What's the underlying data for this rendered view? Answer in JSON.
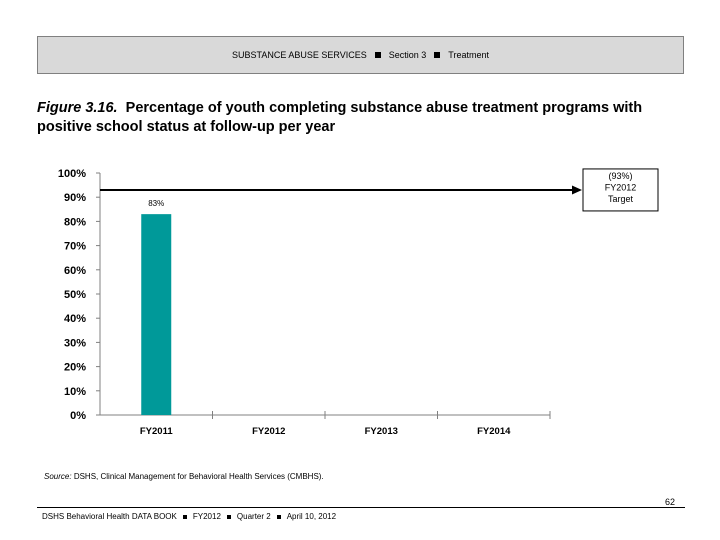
{
  "header": {
    "items": [
      "SUBSTANCE ABUSE SERVICES",
      "Section 3",
      "Treatment"
    ]
  },
  "figure": {
    "label": "Figure 3.16.",
    "title": "Percentage of youth completing substance abuse treatment programs with positive school status at follow-up per year"
  },
  "chart_data": {
    "type": "bar",
    "categories": [
      "FY2011",
      "FY2012",
      "FY2013",
      "FY2014"
    ],
    "values": [
      83,
      null,
      null,
      null
    ],
    "data_labels": [
      "83%",
      "",
      "",
      ""
    ],
    "ylim": [
      0,
      100
    ],
    "y_ticks": [
      0,
      10,
      20,
      30,
      40,
      50,
      60,
      70,
      80,
      90,
      100
    ],
    "y_tick_labels": [
      "0%",
      "10%",
      "20%",
      "30%",
      "40%",
      "50%",
      "60%",
      "70%",
      "80%",
      "90%",
      "100%"
    ],
    "bar_color": "#009999",
    "grid": false,
    "target": {
      "value": 93,
      "label_lines": [
        "(93%)",
        "FY2012",
        "Target"
      ]
    }
  },
  "source": {
    "label": "Source:",
    "text": "DSHS, Clinical Management for Behavioral Health Services (CMBHS)."
  },
  "page_number": "62",
  "footer": {
    "items": [
      "DSHS Behavioral Health DATA BOOK",
      "FY2012",
      "Quarter 2",
      "April 10, 2012"
    ]
  }
}
